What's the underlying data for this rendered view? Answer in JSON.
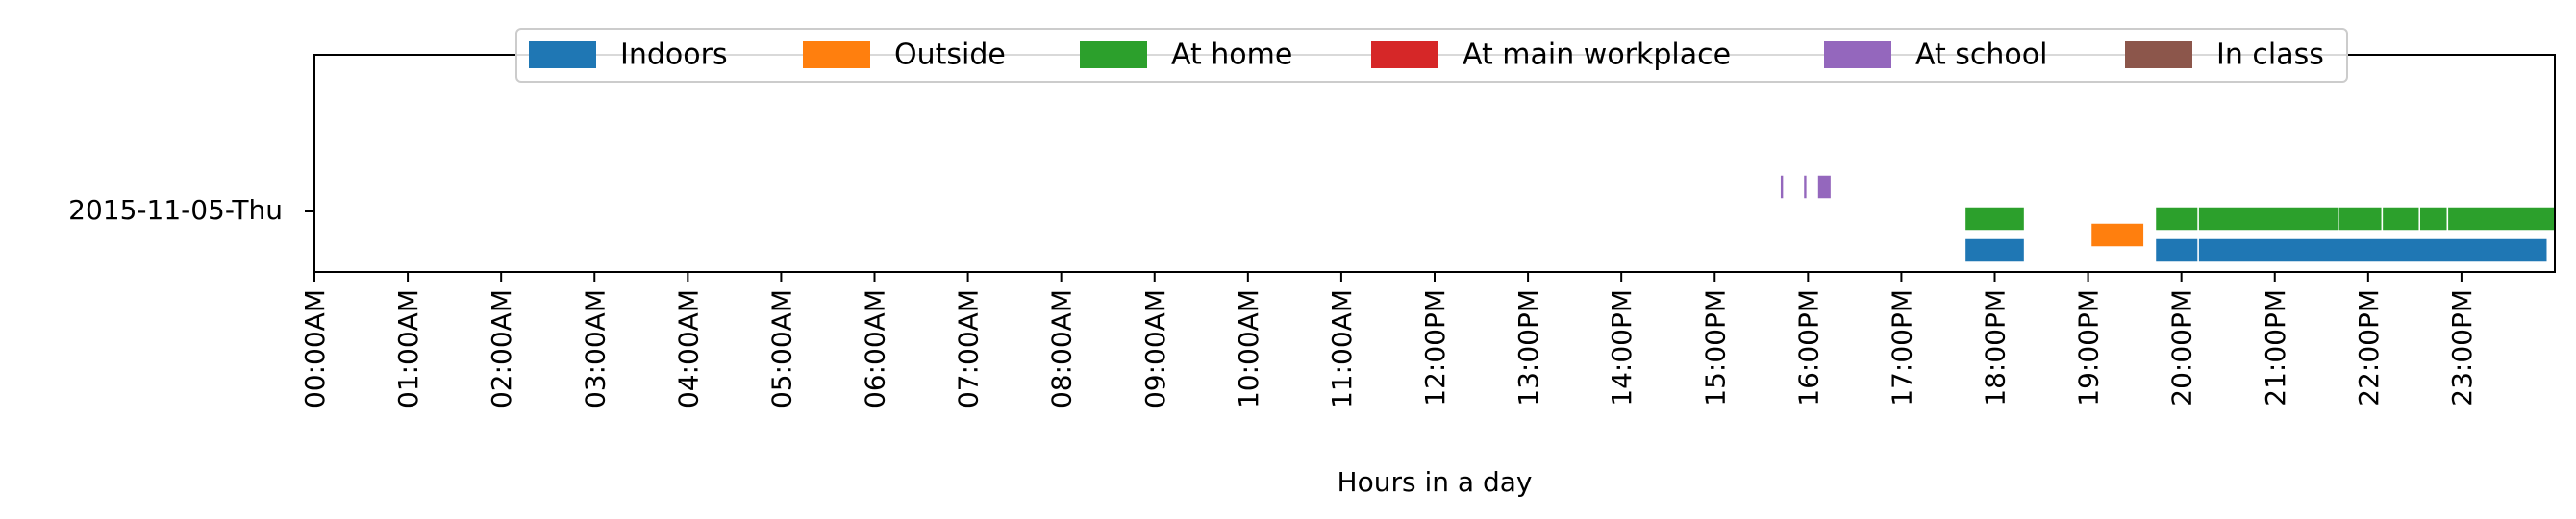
{
  "chart_data": {
    "type": "timeline",
    "xlabel": "Hours in a day",
    "xlim": [
      0,
      24
    ],
    "x_ticks": [
      {
        "value": 0,
        "label": "00:00AM"
      },
      {
        "value": 1,
        "label": "01:00AM"
      },
      {
        "value": 2,
        "label": "02:00AM"
      },
      {
        "value": 3,
        "label": "03:00AM"
      },
      {
        "value": 4,
        "label": "04:00AM"
      },
      {
        "value": 5,
        "label": "05:00AM"
      },
      {
        "value": 6,
        "label": "06:00AM"
      },
      {
        "value": 7,
        "label": "07:00AM"
      },
      {
        "value": 8,
        "label": "08:00AM"
      },
      {
        "value": 9,
        "label": "09:00AM"
      },
      {
        "value": 10,
        "label": "10:00AM"
      },
      {
        "value": 11,
        "label": "11:00AM"
      },
      {
        "value": 12,
        "label": "12:00PM"
      },
      {
        "value": 13,
        "label": "13:00PM"
      },
      {
        "value": 14,
        "label": "14:00PM"
      },
      {
        "value": 15,
        "label": "15:00PM"
      },
      {
        "value": 16,
        "label": "16:00PM"
      },
      {
        "value": 17,
        "label": "17:00PM"
      },
      {
        "value": 18,
        "label": "18:00PM"
      },
      {
        "value": 19,
        "label": "19:00PM"
      },
      {
        "value": 20,
        "label": "20:00PM"
      },
      {
        "value": 21,
        "label": "21:00PM"
      },
      {
        "value": 22,
        "label": "22:00PM"
      },
      {
        "value": 23,
        "label": "23:00PM"
      }
    ],
    "y_categories": [
      "2015-11-05-Thu"
    ],
    "legend_position": "top-center",
    "grid": false,
    "series": [
      {
        "name": "Indoors",
        "color": "#1f77b4",
        "intervals": [
          [
            17.68,
            18.32
          ],
          [
            19.72,
            20.18
          ],
          [
            20.18,
            23.92
          ]
        ]
      },
      {
        "name": "Outside",
        "color": "#ff7f0e",
        "intervals": [
          [
            19.03,
            19.6
          ]
        ]
      },
      {
        "name": "At home",
        "color": "#2ca02c",
        "intervals": [
          [
            17.68,
            18.32
          ],
          [
            19.72,
            20.18
          ],
          [
            20.18,
            21.68
          ],
          [
            21.68,
            22.15
          ],
          [
            22.15,
            22.55
          ],
          [
            22.55,
            22.85
          ],
          [
            22.85,
            24.0
          ]
        ]
      },
      {
        "name": "At main workplace",
        "color": "#d62728",
        "intervals": []
      },
      {
        "name": "At school",
        "color": "#9467bd",
        "intervals": [
          [
            15.7,
            15.74
          ],
          [
            15.95,
            15.99
          ],
          [
            16.1,
            16.25
          ]
        ]
      },
      {
        "name": "In class",
        "color": "#8c564b",
        "intervals": []
      }
    ]
  }
}
